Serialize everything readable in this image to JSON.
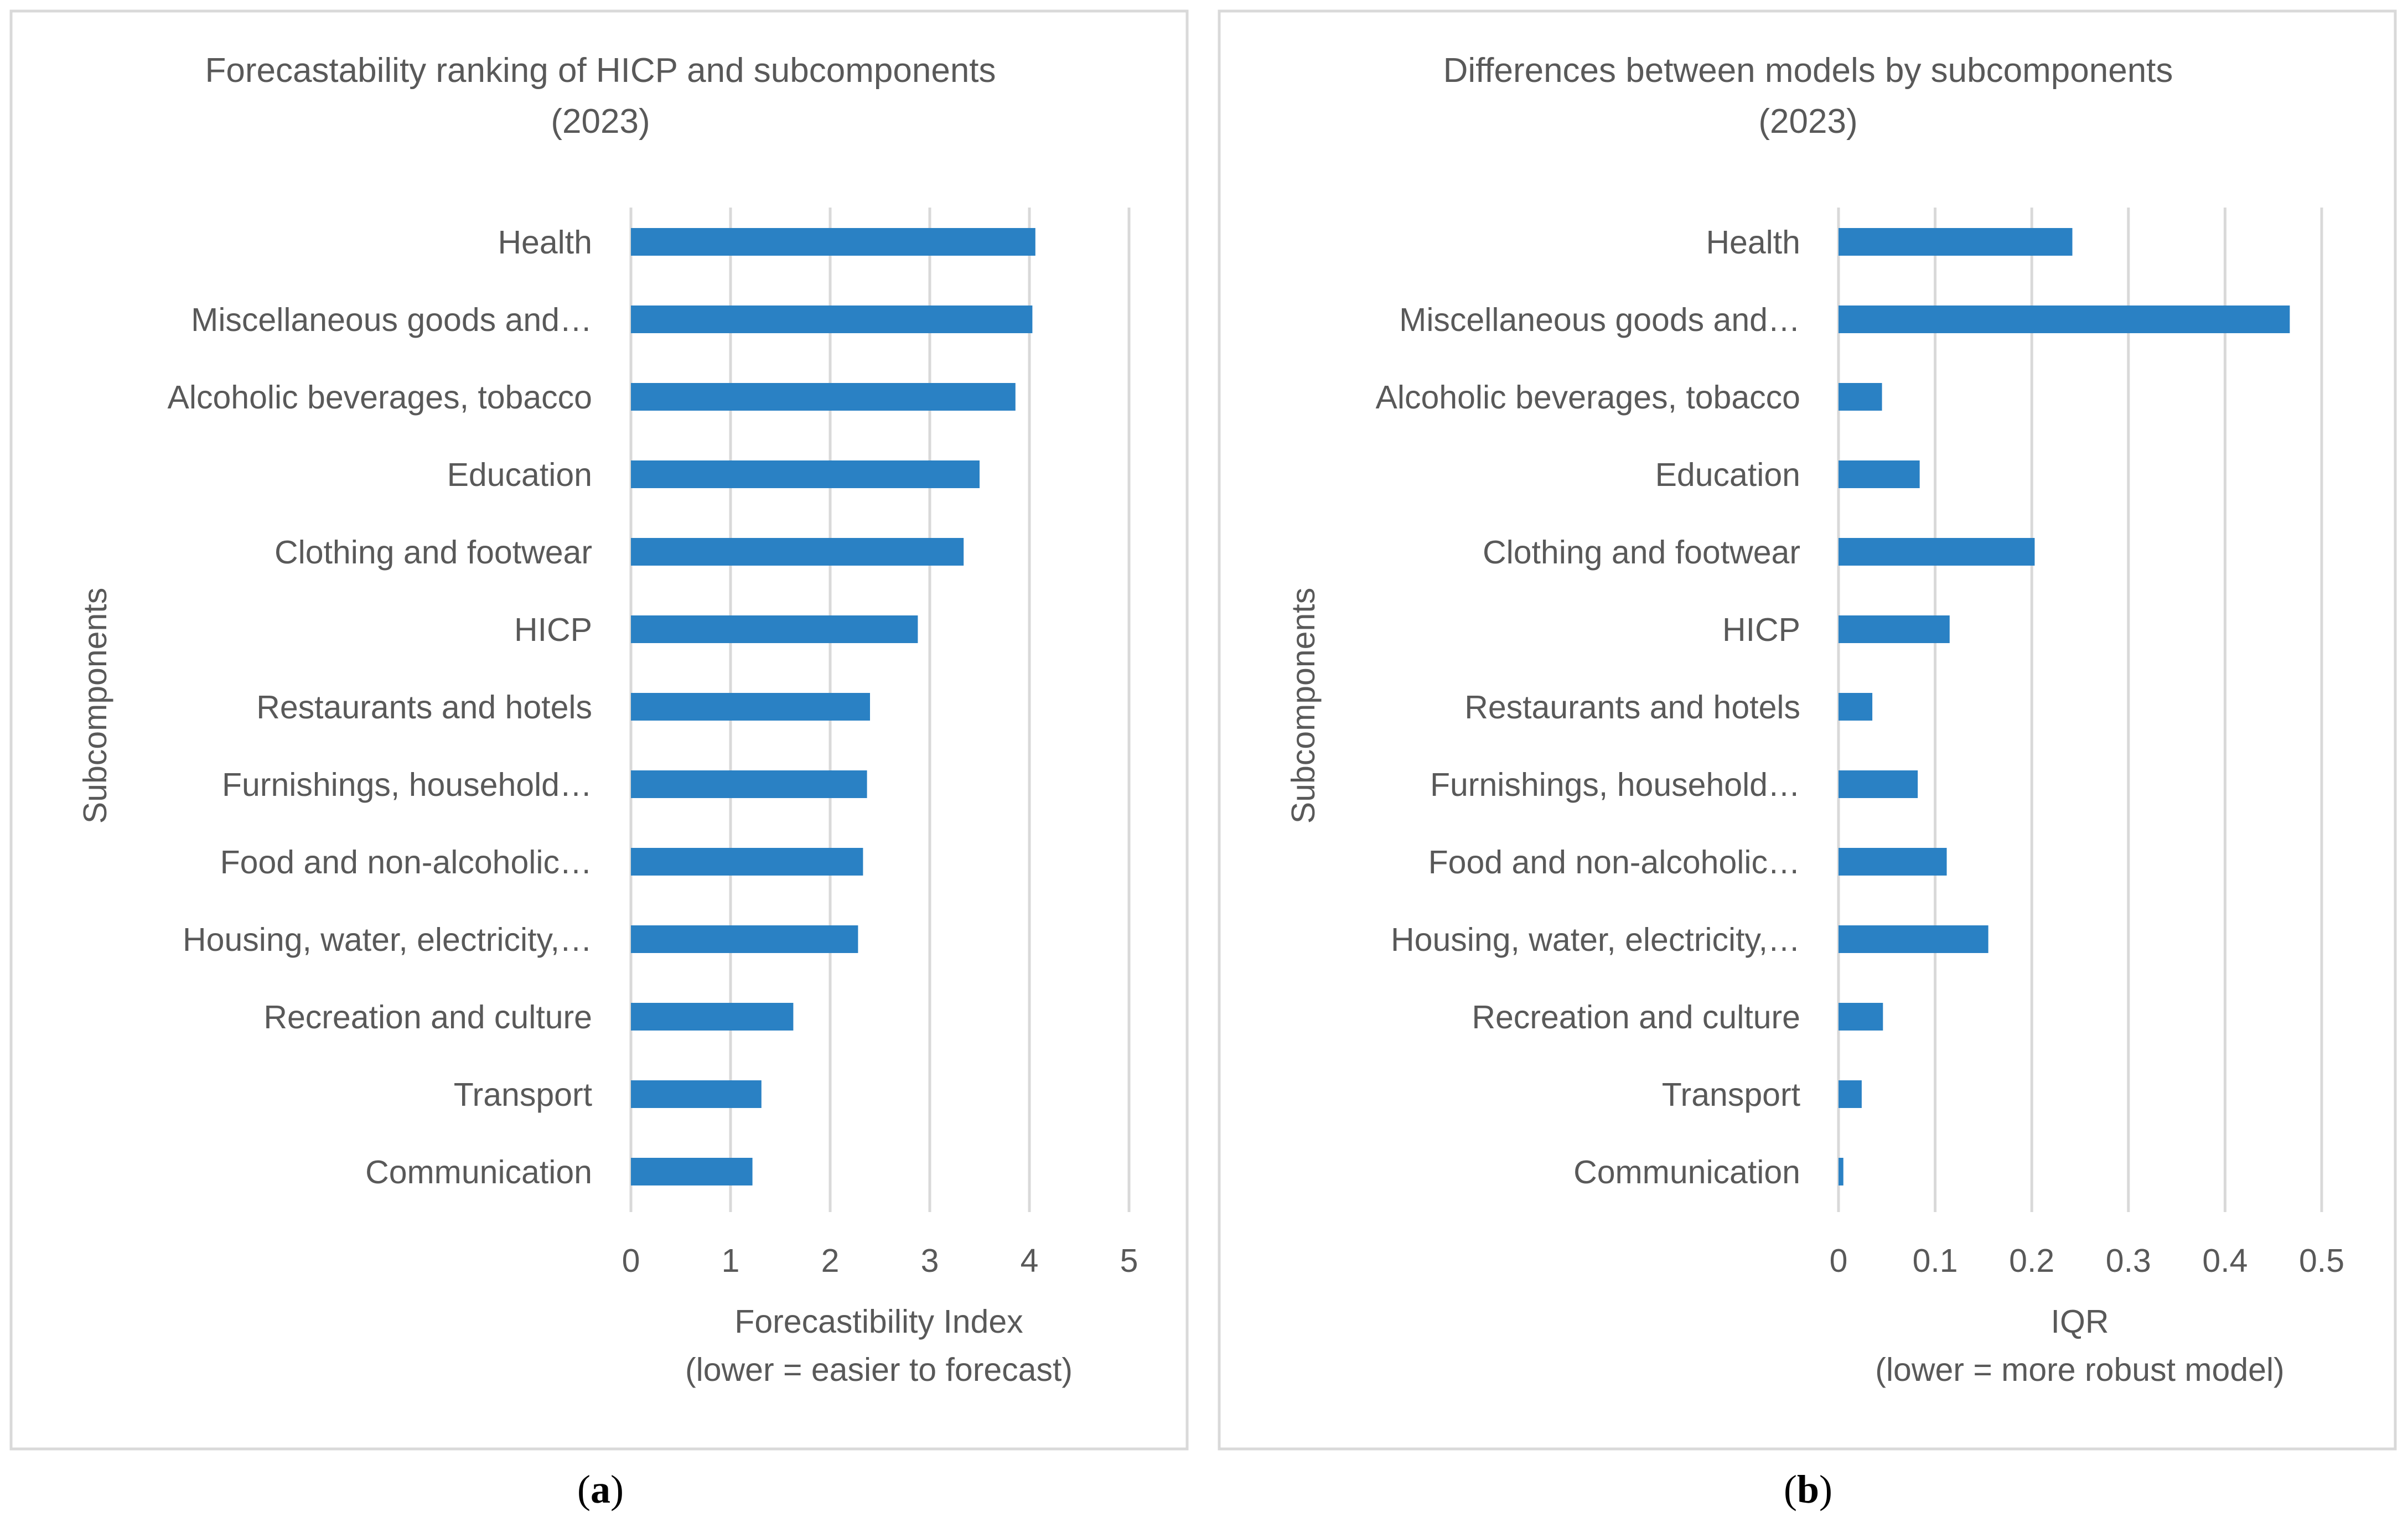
{
  "colors": {
    "bar": "#2A81C4",
    "grid": "#D9D9D9",
    "text": "#595959",
    "border": "#D9D9D9"
  },
  "chart_data": [
    {
      "type": "bar",
      "orientation": "horizontal",
      "panel_label": "a",
      "title_lines": [
        "Forecastability ranking of HICP and subcomponents",
        "(2023)"
      ],
      "ylabel": "Subcomponents",
      "xlabel_lines": [
        "Forecastibility Index",
        "(lower = easier to forecast)"
      ],
      "categories": [
        "Health",
        "Miscellaneous goods and…",
        "Alcoholic beverages, tobacco",
        "Education",
        "Clothing and footwear",
        "HICP",
        "Restaurants and hotels",
        "Furnishings, household…",
        "Food and non-alcoholic…",
        "Housing, water, electricity,…",
        "Recreation and culture",
        "Transport",
        "Communication"
      ],
      "values": [
        4.06,
        4.03,
        3.86,
        3.5,
        3.34,
        2.88,
        2.4,
        2.37,
        2.33,
        2.28,
        1.63,
        1.31,
        1.22
      ],
      "xlim": [
        0,
        5
      ],
      "xticks": [
        "0",
        "1",
        "2",
        "3",
        "4",
        "5"
      ],
      "grid": true,
      "legend": "none"
    },
    {
      "type": "bar",
      "orientation": "horizontal",
      "panel_label": "b",
      "title_lines": [
        "Differences between models by subcomponents",
        "(2023)"
      ],
      "ylabel": "Subcomponents",
      "xlabel_lines": [
        "IQR",
        "(lower = more robust model)"
      ],
      "categories": [
        "Health",
        "Miscellaneous goods and…",
        "Alcoholic beverages, tobacco",
        "Education",
        "Clothing and footwear",
        "HICP",
        "Restaurants and hotels",
        "Furnishings, household…",
        "Food and non-alcoholic…",
        "Housing, water, electricity,…",
        "Recreation and culture",
        "Transport",
        "Communication"
      ],
      "values": [
        0.242,
        0.467,
        0.045,
        0.084,
        0.203,
        0.115,
        0.035,
        0.082,
        0.112,
        0.155,
        0.046,
        0.024,
        0.005
      ],
      "xlim": [
        0,
        0.5
      ],
      "xticks": [
        "0",
        "0.1",
        "0.2",
        "0.3",
        "0.4",
        "0.5"
      ],
      "grid": true,
      "legend": "none"
    }
  ]
}
